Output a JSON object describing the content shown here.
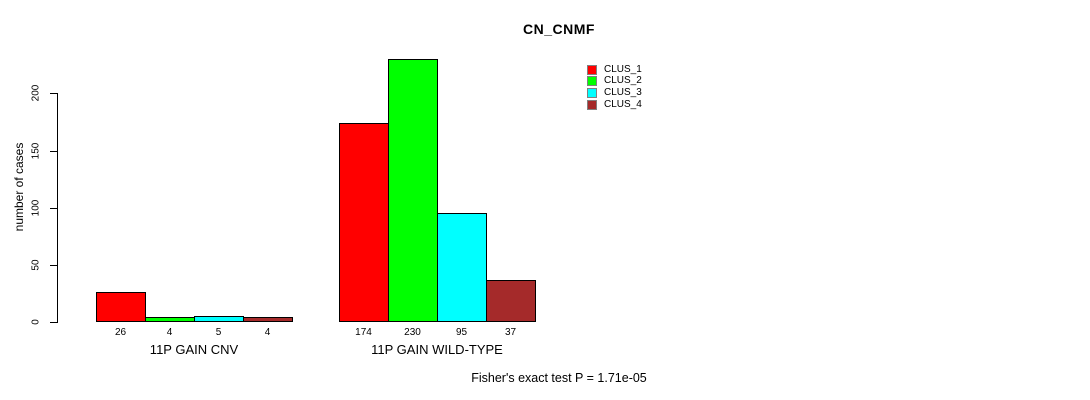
{
  "chart_data": {
    "type": "bar",
    "title": "CN_CNMF",
    "ylabel": "number of cases",
    "xlabel": "",
    "annotation": "Fisher's exact test P = 1.71e-05",
    "yticks": [
      0,
      50,
      100,
      150,
      200
    ],
    "ylim": [
      0,
      230
    ],
    "grid": false,
    "legend_position": "top-right",
    "categories": [
      "11P GAIN CNV",
      "11P GAIN WILD-TYPE"
    ],
    "series": [
      {
        "name": "CLUS_1",
        "color": "#FF0000",
        "values": [
          26,
          174
        ]
      },
      {
        "name": "CLUS_2",
        "color": "#00FF00",
        "values": [
          4,
          230
        ]
      },
      {
        "name": "CLUS_3",
        "color": "#00FFFF",
        "values": [
          5,
          95
        ]
      },
      {
        "name": "CLUS_4",
        "color": "#A52A2A",
        "values": [
          4,
          37
        ]
      }
    ],
    "bar_value_labels": [
      [
        "26",
        "4",
        "5",
        "4"
      ],
      [
        "174",
        "230",
        "95",
        "37"
      ]
    ]
  }
}
